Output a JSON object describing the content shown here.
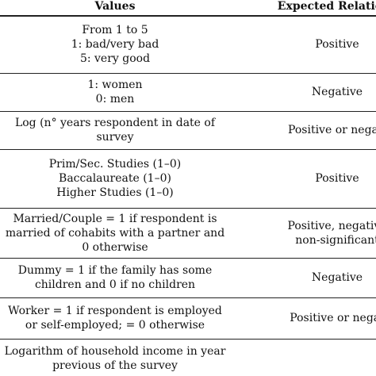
{
  "table": {
    "header": [
      "Values",
      "Expected Relations"
    ],
    "rows": [
      [
        [
          "From 1 to 5",
          "1: bad/very bad",
          "5: very good"
        ],
        [
          "Positive"
        ]
      ],
      [
        [
          "1: women",
          "0: men"
        ],
        [
          "Negative"
        ]
      ],
      [
        [
          "Log (n° years respondent in date of",
          "survey"
        ],
        [
          "Positive or negati"
        ]
      ],
      [
        [
          "Prim/Sec. Studies (1–0)",
          "Baccalaureate (1–0)",
          "Higher Studies (1–0)"
        ],
        [
          "Positive"
        ]
      ],
      [
        [
          "Married/Couple = 1 if respondent is",
          "married of cohabits with a partner and",
          "0 otherwise"
        ],
        [
          "Positive, negative",
          "non-significant"
        ]
      ],
      [
        [
          "Dummy = 1 if the family has some",
          "children and 0 if no children"
        ],
        [
          "Negative"
        ]
      ],
      [
        [
          "Worker = 1 if respondent is employed",
          "or self-employed; = 0 otherwise"
        ],
        [
          "Positive or negat"
        ]
      ],
      [
        [
          "Logarithm of household income in year",
          "previous of the survey"
        ],
        []
      ]
    ]
  }
}
